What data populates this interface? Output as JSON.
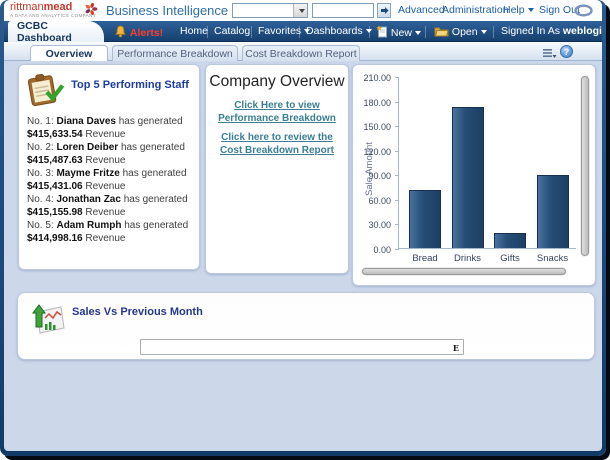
{
  "header": {
    "brand": {
      "name_regular": "rittman",
      "name_bold": "mead",
      "tagline": "A DATA AND ANALYTICS COMPANY"
    },
    "product_title": "Business Intelligence",
    "search": {
      "dropdown_value": "",
      "input_value": ""
    },
    "links": {
      "advanced": "Advanced",
      "administration": "Administration",
      "help": "Help",
      "sign_out": "Sign Out"
    }
  },
  "navbar": {
    "dashboard_tab": "GCBC Dashboard",
    "alerts_label": "Alerts!",
    "home": "Home",
    "catalog": "Catalog",
    "favorites": "Favorites",
    "dashboards": "Dashboards",
    "new": "New",
    "open": "Open",
    "signed_in_as": "Signed In As",
    "user": "weblogic"
  },
  "page_tabs": {
    "overview": "Overview",
    "performance": "Performance Breakdown",
    "cost": "Cost Breakdown Report"
  },
  "toolbar": {
    "help_glyph": "?"
  },
  "top5_panel": {
    "title": "Top 5 Performing Staff",
    "entries": [
      {
        "rank": "No. 1:",
        "name": "Diana Daves",
        "verb": "has generated",
        "amount": "$415,633.54",
        "unit": "Revenue"
      },
      {
        "rank": "No. 2:",
        "name": "Loren Deiber",
        "verb": "has generated",
        "amount": "$415,487.63",
        "unit": "Revenue"
      },
      {
        "rank": "No. 3:",
        "name": "Mayme Fritze",
        "verb": "has generated",
        "amount": "$415,431.06",
        "unit": "Revenue"
      },
      {
        "rank": "No. 4:",
        "name": "Jonathan Zac",
        "verb": "has generated",
        "amount": "$415,155.98",
        "unit": "Revenue"
      },
      {
        "rank": "No. 5:",
        "name": "Adam Rumph",
        "verb": "has generated",
        "amount": "$414,998.16",
        "unit": "Revenue"
      }
    ]
  },
  "company_panel": {
    "title": "Company Overview",
    "link_performance": "Click Here to view Performance Breakdown",
    "link_cost": "Click here to review the Cost Breakdown Report",
    "link_color": "#3b7f93"
  },
  "sales_panel": {
    "title": "Sales Vs Previous Month",
    "box_text": "E"
  },
  "chart_data": {
    "type": "bar",
    "categories": [
      "Bread",
      "Drinks",
      "Gifts",
      "Snacks"
    ],
    "values": [
      71,
      172,
      18,
      89
    ],
    "title": "",
    "xlabel": "",
    "ylabel": "Sale Amount",
    "ylim": [
      0,
      210
    ],
    "ytick_labels": [
      "0.00",
      "30.00",
      "60.00",
      "90.00",
      "120.00",
      "150.00",
      "180.00",
      "210.00"
    ],
    "grid": false,
    "legend": false,
    "bar_color": "#24476e"
  },
  "colors": {
    "frame_navy": "#16406f",
    "content_bg": "#ccd7ea",
    "link_blue": "#1d5da8",
    "alert_red": "#ff3b2e",
    "panel_title_blue": "#1e3c9c",
    "bar_navy": "#24476e"
  }
}
